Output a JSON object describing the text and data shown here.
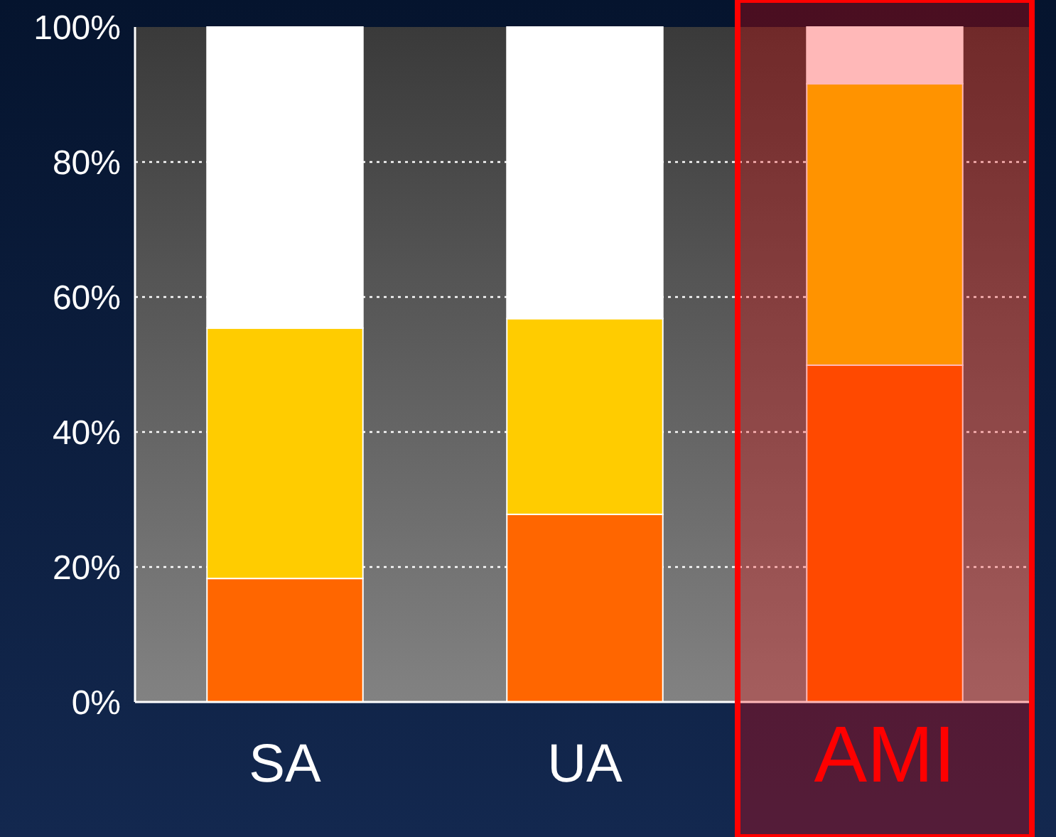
{
  "chart_data": {
    "type": "bar",
    "stacked": true,
    "categories": [
      "SA",
      "UA",
      "AMI"
    ],
    "series": [
      {
        "color": "#ff6600",
        "values": [
          18.3,
          27.8,
          49.9
        ]
      },
      {
        "color": "#ffcc00",
        "values": [
          37.1,
          29,
          41.7
        ]
      },
      {
        "color": "#ffffff",
        "values": [
          44.6,
          43.2,
          8.4
        ]
      }
    ],
    "ylim": [
      0,
      100
    ],
    "yticks": [
      {
        "value": 0,
        "label": "0%"
      },
      {
        "value": 20,
        "label": "20%"
      },
      {
        "value": 40,
        "label": "40%"
      },
      {
        "value": 60,
        "label": "60%"
      },
      {
        "value": 80,
        "label": "80%"
      },
      {
        "value": 100,
        "label": "100%"
      }
    ],
    "grid": "y",
    "bands": [
      {
        "axis": "x",
        "from": "AMI",
        "to": "AMI",
        "color": "#ff0000"
      }
    ]
  }
}
